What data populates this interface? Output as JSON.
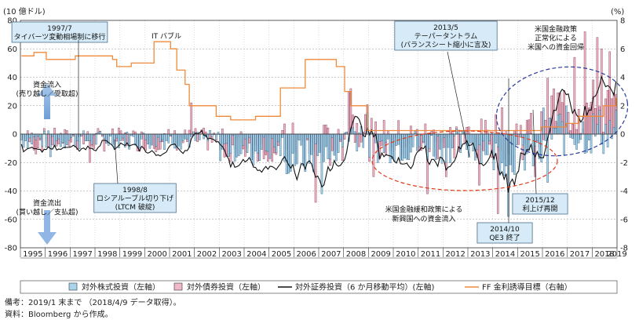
{
  "chart_data": {
    "type": "bar+line",
    "left_unit": "(10 億ドル)",
    "right_unit": "(%)",
    "ylim_left": [
      -80,
      80
    ],
    "ylim_right": [
      -8,
      8
    ],
    "left_ticks": [
      "80",
      "60",
      "40",
      "20",
      "0",
      "-20",
      "-40",
      "-60",
      "-80"
    ],
    "right_ticks": [
      "8",
      "6",
      "4",
      "2",
      "0",
      "-2",
      "-4",
      "-6",
      "-8"
    ],
    "years": [
      "1995",
      "1996",
      "1997",
      "1998",
      "1999",
      "2000",
      "2001",
      "2002",
      "2003",
      "2004",
      "2005",
      "2006",
      "2007",
      "2008",
      "2009",
      "2010",
      "2011",
      "2012",
      "2013",
      "2014",
      "2015",
      "2016",
      "2017",
      "2018",
      "2019"
    ],
    "series": [
      {
        "name": "対外株式投資（左軸）",
        "kind": "bar",
        "color": "#a9d4ec"
      },
      {
        "name": "対外債券投資（左軸）",
        "kind": "bar",
        "color": "#f0b8c8"
      },
      {
        "name": "対外証券投資（6 か月移動平均）(左軸)",
        "kind": "line",
        "color": "#111111"
      },
      {
        "name": "FF 金利誘導目標（右軸）",
        "kind": "line",
        "color": "#f08a3a"
      }
    ],
    "ff_rate": [
      [
        "1995-01",
        5.5
      ],
      [
        "1995-07",
        5.75
      ],
      [
        "1996-01",
        5.25
      ],
      [
        "1997-03",
        5.5
      ],
      [
        "1998-09",
        5.25
      ],
      [
        "1998-11",
        4.75
      ],
      [
        "1999-06",
        5.0
      ],
      [
        "2000-05",
        6.5
      ],
      [
        "2001-01",
        6.0
      ],
      [
        "2001-04",
        4.5
      ],
      [
        "2001-08",
        3.5
      ],
      [
        "2001-10",
        2.0
      ],
      [
        "2002-11",
        1.25
      ],
      [
        "2003-06",
        1.0
      ],
      [
        "2004-06",
        1.25
      ],
      [
        "2005-06",
        3.25
      ],
      [
        "2006-06",
        5.25
      ],
      [
        "2007-09",
        4.75
      ],
      [
        "2008-01",
        3.0
      ],
      [
        "2008-04",
        2.0
      ],
      [
        "2008-12",
        0.25
      ],
      [
        "2015-12",
        0.5
      ],
      [
        "2016-12",
        0.75
      ],
      [
        "2017-06",
        1.25
      ],
      [
        "2018-06",
        2.0
      ],
      [
        "2018-12",
        2.5
      ],
      [
        "2019-01",
        2.5
      ]
    ],
    "annotations": [
      {
        "id": "a1997",
        "lines": [
          "1997/7",
          "タイバーツ変動相場制に移行"
        ]
      },
      {
        "id": "a1998",
        "lines": [
          "1998/8",
          "ロシアルーブル切り下げ",
          "(LTCM 破綻)"
        ]
      },
      {
        "id": "a2013",
        "lines": [
          "2013/5",
          "テーパータントラム",
          "(バランスシート縮小に言及)"
        ]
      },
      {
        "id": "a2014",
        "lines": [
          "2014/10",
          "QE3 終了"
        ]
      },
      {
        "id": "a2015",
        "lines": [
          "2015/12",
          "利上げ再開"
        ]
      }
    ],
    "labels": {
      "it_bubble": "IT バブル",
      "us_normalize": [
        "米国金融政策",
        "正常化による",
        "米国への資金回帰"
      ],
      "em_inflow": [
        "米国金融緩和政策による",
        "新興国への資金流入"
      ],
      "inflow": [
        "資金流入",
        "(売り越し／受取超)"
      ],
      "outflow": [
        "資金流出",
        "(買い越し／支払超)"
      ]
    }
  },
  "notes": [
    "備考：2019/1 末まで （2018/4/9 データ取得）。",
    "資料：Bloomberg から作成。"
  ]
}
